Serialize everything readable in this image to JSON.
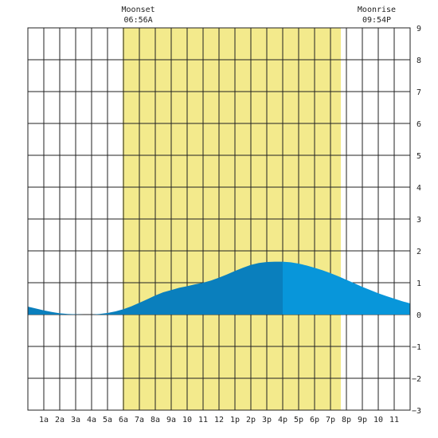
{
  "chart_data": {
    "type": "area",
    "title": "",
    "xlabel": "",
    "ylabel": "",
    "xlim": [
      0,
      24
    ],
    "ylim": [
      -3,
      9
    ],
    "grid": true,
    "x_tick_values": [
      1,
      2,
      3,
      4,
      5,
      6,
      7,
      8,
      9,
      10,
      11,
      12,
      13,
      14,
      15,
      16,
      17,
      18,
      19,
      20,
      21,
      22,
      23
    ],
    "x_tick_labels": [
      "1a",
      "2a",
      "3a",
      "4a",
      "5a",
      "6a",
      "7a",
      "8a",
      "9a",
      "10",
      "11",
      "12",
      "1p",
      "2p",
      "3p",
      "4p",
      "5p",
      "6p",
      "7p",
      "8p",
      "9p",
      "10",
      "11"
    ],
    "y_ticks": [
      -3,
      -2,
      -1,
      0,
      1,
      2,
      3,
      4,
      5,
      6,
      7,
      8,
      9
    ],
    "daylight": {
      "start_hour": 5.95,
      "end_hour": 19.65,
      "color": "#f3ea8c"
    },
    "moon_events": [
      {
        "label": "Moonset",
        "time": "06:56A",
        "hour": 6.93
      },
      {
        "label": "Moonrise",
        "time": "09:54P",
        "hour": 21.9
      }
    ],
    "current_hour": 16.0,
    "colors": {
      "past_day": "#0a7fbd",
      "future": "#0896da",
      "grid": "#222222",
      "frame": "#222222"
    },
    "series": [
      {
        "x": [
          0,
          0.5,
          1,
          1.5,
          2,
          2.5,
          3,
          3.5,
          4,
          4.5,
          5,
          5.5,
          6,
          6.5,
          7,
          7.5,
          8,
          8.5,
          9,
          9.5,
          10,
          10.5,
          11,
          11.5,
          12,
          12.5,
          13,
          13.5,
          14,
          14.5,
          15,
          15.5,
          16,
          16.5,
          17,
          17.5,
          18,
          18.5,
          19,
          19.5,
          20,
          20.5,
          21,
          21.5,
          22,
          22.5,
          23,
          23.5,
          24
        ],
        "values": [
          0.25,
          0.19,
          0.13,
          0.08,
          0.04,
          0.02,
          0.01,
          0.0,
          0.0,
          0.02,
          0.05,
          0.1,
          0.17,
          0.26,
          0.37,
          0.48,
          0.6,
          0.7,
          0.77,
          0.84,
          0.89,
          0.95,
          1.0,
          1.07,
          1.16,
          1.26,
          1.37,
          1.47,
          1.56,
          1.62,
          1.65,
          1.66,
          1.66,
          1.64,
          1.6,
          1.54,
          1.47,
          1.39,
          1.3,
          1.2,
          1.09,
          0.98,
          0.87,
          0.77,
          0.67,
          0.58,
          0.5,
          0.42,
          0.35
        ]
      }
    ]
  }
}
